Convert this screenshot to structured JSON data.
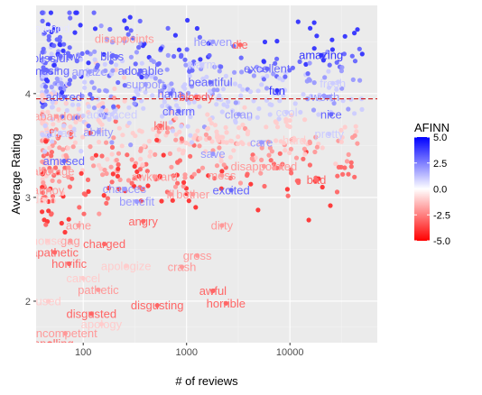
{
  "chart_data": {
    "type": "scatter",
    "title": "",
    "xlabel": "# of reviews",
    "ylabel": "Average Rating",
    "x_scale": "log10",
    "xlim": [
      35,
      70000
    ],
    "ylim": [
      1.6,
      4.85
    ],
    "x_ticks": [
      {
        "value": 100,
        "label": "100"
      },
      {
        "value": 1000,
        "label": "1000"
      },
      {
        "value": 10000,
        "label": "10000"
      }
    ],
    "y_ticks": [
      {
        "value": 2,
        "label": "2"
      },
      {
        "value": 3,
        "label": "3"
      },
      {
        "value": 4,
        "label": "4"
      }
    ],
    "reference_line": {
      "y": 3.95,
      "style": "dashed",
      "color": "#cc0000"
    },
    "grid": true,
    "background": "#ebebeb",
    "legend": {
      "title": "AFINN",
      "placement": "right",
      "ticks": [
        "5.0",
        "2.5",
        "0.0",
        "-2.5",
        "-5.0"
      ],
      "tick_values": [
        5,
        2.5,
        0,
        -2.5,
        -5
      ],
      "colors": {
        "high": "#0000ff",
        "mid": "#ffffff",
        "low": "#ff0000"
      }
    },
    "labeled_points": [
      {
        "word": "matched",
        "x": 45,
        "y": 4.63,
        "afinn": 0.5
      },
      {
        "word": "disappoints",
        "x": 250,
        "y": 4.53,
        "afinn": -2
      },
      {
        "word": "heaven",
        "x": 1800,
        "y": 4.5,
        "afinn": 2
      },
      {
        "word": "die",
        "x": 3300,
        "y": 4.47,
        "afinn": -3
      },
      {
        "word": "amazing",
        "x": 20000,
        "y": 4.37,
        "afinn": 4
      },
      {
        "word": "blissful",
        "x": 48,
        "y": 4.34,
        "afinn": 3
      },
      {
        "word": "ftw",
        "x": 75,
        "y": 4.36,
        "afinn": 3
      },
      {
        "word": "bliss",
        "x": 190,
        "y": 4.36,
        "afinn": 3
      },
      {
        "word": "fresh",
        "x": 26000,
        "y": 4.1,
        "afinn": 1
      },
      {
        "word": "excellent",
        "x": 6000,
        "y": 4.24,
        "afinn": 3
      },
      {
        "word": "amaze",
        "x": 115,
        "y": 4.21,
        "afinn": 2
      },
      {
        "word": "adorable",
        "x": 360,
        "y": 4.22,
        "afinn": 3
      },
      {
        "word": "beautiful",
        "x": 1700,
        "y": 4.11,
        "afinn": 3
      },
      {
        "word": "fun",
        "x": 7500,
        "y": 4.03,
        "afinn": 4
      },
      {
        "word": "haha",
        "x": 700,
        "y": 4.0,
        "afinn": 3
      },
      {
        "word": "bloody",
        "x": 1240,
        "y": 3.97,
        "afinn": -3
      },
      {
        "word": "worth",
        "x": 22000,
        "y": 3.97,
        "afinn": 2
      },
      {
        "word": "adored",
        "x": 65,
        "y": 3.97,
        "afinn": 3
      },
      {
        "word": "charm",
        "x": 840,
        "y": 3.83,
        "afinn": 3
      },
      {
        "word": "nice",
        "x": 25000,
        "y": 3.8,
        "afinn": 3
      },
      {
        "word": "clean",
        "x": 3200,
        "y": 3.8,
        "afinn": 2
      },
      {
        "word": "cool",
        "x": 9300,
        "y": 3.82,
        "afinn": 1
      },
      {
        "word": "advanced",
        "x": 190,
        "y": 3.8,
        "afinn": 1
      },
      {
        "word": "kill",
        "x": 560,
        "y": 3.69,
        "afinn": -3
      },
      {
        "word": "ability",
        "x": 140,
        "y": 3.63,
        "afinn": 2
      },
      {
        "word": "pretty",
        "x": 24000,
        "y": 3.61,
        "afinn": 1
      },
      {
        "word": "care",
        "x": 5300,
        "y": 3.53,
        "afinn": 2
      },
      {
        "word": "hard",
        "x": 11000,
        "y": 3.55,
        "afinn": -1
      },
      {
        "word": "save",
        "x": 1800,
        "y": 3.42,
        "afinn": 2
      },
      {
        "word": "amused",
        "x": 65,
        "y": 3.35,
        "afinn": 3
      },
      {
        "word": "disappointed",
        "x": 5600,
        "y": 3.3,
        "afinn": -2
      },
      {
        "word": "bad",
        "x": 18000,
        "y": 3.17,
        "afinn": -3
      },
      {
        "word": "mess",
        "x": 2200,
        "y": 3.21,
        "afinn": -2
      },
      {
        "word": "awkward",
        "x": 490,
        "y": 3.2,
        "afinn": -2
      },
      {
        "word": "excited",
        "x": 2700,
        "y": 3.07,
        "afinn": 3
      },
      {
        "word": "bother",
        "x": 1150,
        "y": 3.03,
        "afinn": -2
      },
      {
        "word": "chances",
        "x": 250,
        "y": 3.08,
        "afinn": 2
      },
      {
        "word": "benefit",
        "x": 330,
        "y": 2.96,
        "afinn": 2
      },
      {
        "word": "ill",
        "x": 700,
        "y": 3.03,
        "afinn": -2
      },
      {
        "word": "angry",
        "x": 380,
        "y": 2.77,
        "afinn": -3
      },
      {
        "word": "dirty",
        "x": 2200,
        "y": 2.73,
        "afinn": -2
      },
      {
        "word": "gag",
        "x": 75,
        "y": 2.58,
        "afinn": -2
      },
      {
        "word": "charged",
        "x": 160,
        "y": 2.55,
        "afinn": -3
      },
      {
        "word": "apathetic",
        "x": 53,
        "y": 2.47,
        "afinn": -3
      },
      {
        "word": "gross",
        "x": 1270,
        "y": 2.44,
        "afinn": -2
      },
      {
        "word": "horrific",
        "x": 73,
        "y": 2.36,
        "afinn": -3
      },
      {
        "word": "apologize",
        "x": 260,
        "y": 2.34,
        "afinn": -1
      },
      {
        "word": "pathetic",
        "x": 140,
        "y": 2.11,
        "afinn": -2
      },
      {
        "word": "awful",
        "x": 1800,
        "y": 2.1,
        "afinn": -3
      },
      {
        "word": "horrible",
        "x": 2400,
        "y": 1.98,
        "afinn": -3
      },
      {
        "word": "disgusting",
        "x": 520,
        "y": 1.96,
        "afinn": -3
      },
      {
        "word": "disgusted",
        "x": 120,
        "y": 1.88,
        "afinn": -3
      },
      {
        "word": "incompetent",
        "x": 67,
        "y": 1.69,
        "afinn": -2
      },
      {
        "word": "appalling",
        "x": 48,
        "y": 1.59,
        "afinn": -3
      },
      {
        "word": "amusing",
        "x": 45,
        "y": 4.22,
        "afinn": 3
      },
      {
        "word": "darn",
        "x": 42,
        "y": 2.98,
        "afinn": -1
      },
      {
        "word": "annoy",
        "x": 46,
        "y": 3.07,
        "afinn": -2
      },
      {
        "word": "sabotage",
        "x": 48,
        "y": 3.25,
        "afinn": -2
      },
      {
        "word": "ache",
        "x": 90,
        "y": 2.73,
        "afinn": -2
      },
      {
        "word": "cancel",
        "x": 100,
        "y": 2.22,
        "afinn": -1
      },
      {
        "word": "used",
        "x": 46,
        "y": 2.0,
        "afinn": -1
      },
      {
        "word": "house",
        "x": 45,
        "y": 2.58,
        "afinn": -1
      },
      {
        "word": "crash",
        "x": 900,
        "y": 2.33,
        "afinn": -2
      },
      {
        "word": "apology",
        "x": 150,
        "y": 1.78,
        "afinn": -1
      },
      {
        "word": "abandon",
        "x": 55,
        "y": 3.78,
        "afinn": -2
      },
      {
        "word": "attract",
        "x": 60,
        "y": 3.62,
        "afinn": 1
      },
      {
        "word": "support",
        "x": 400,
        "y": 4.09,
        "afinn": 2
      },
      {
        "word": "warm",
        "x": 1400,
        "y": 4.28,
        "afinn": 1
      }
    ],
    "background_point_count": 900,
    "background_point_note": "dense cloud of small unlabeled points, mostly between 40 and 3000 reviews"
  }
}
